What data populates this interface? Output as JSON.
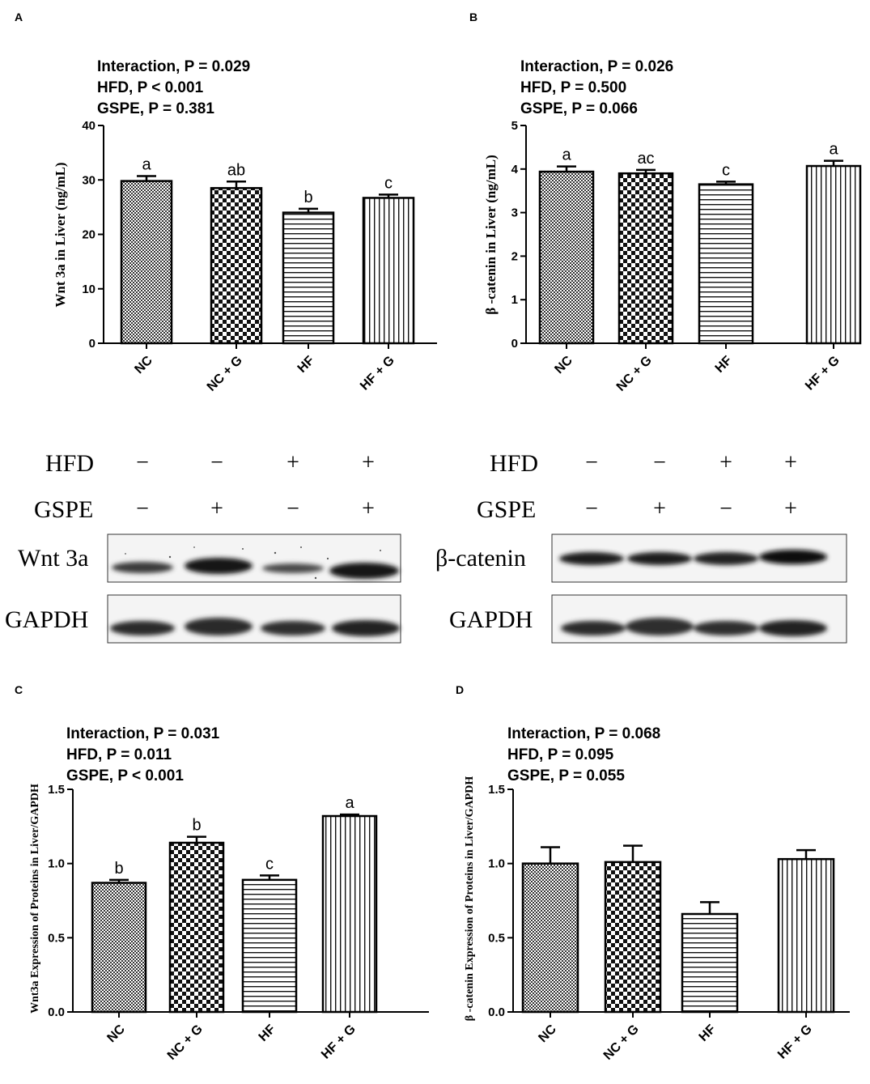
{
  "panels": [
    {
      "letter": "A",
      "stats": [
        "Interaction, P = 0.029",
        "HFD, P < 0.001",
        "GSPE, P = 0.381"
      ],
      "ylabel": "Wnt 3a in Liver (ng/mL)"
    },
    {
      "letter": "B",
      "stats": [
        "Interaction, P = 0.026",
        "HFD, P = 0.500",
        "GSPE, P = 0.066"
      ],
      "ylabel": "β -catenin in Liver (ng/mL)"
    },
    {
      "letter": "C",
      "stats": [
        "Interaction, P = 0.031",
        "HFD, P = 0.011",
        "GSPE, P < 0.001"
      ],
      "ylabel": "Wnt3a Expression of Proteins in Liver/GAPDH"
    },
    {
      "letter": "D",
      "stats": [
        "Interaction, P = 0.068",
        "HFD, P = 0.095",
        "GSPE, P = 0.055"
      ],
      "ylabel": "β -catenin Expression of Proteins in Liver/GAPDH"
    }
  ],
  "blots": {
    "left": {
      "row_labels": [
        "HFD",
        "GSPE"
      ],
      "hfd_signs": [
        "−",
        "−",
        "+",
        "+"
      ],
      "gspe_signs": [
        "−",
        "+",
        "−",
        "+"
      ],
      "band_labels": [
        "Wnt 3a",
        "GAPDH"
      ]
    },
    "right": {
      "row_labels": [
        "HFD",
        "GSPE"
      ],
      "hfd_signs": [
        "−",
        "−",
        "+",
        "+"
      ],
      "gspe_signs": [
        "−",
        "+",
        "−",
        "+"
      ],
      "band_labels": [
        "β-catenin",
        "GAPDH"
      ]
    }
  },
  "chart_data": [
    {
      "type": "bar",
      "categories": [
        "NC",
        "NC + G",
        "HF",
        "HF + G"
      ],
      "values": [
        29.8,
        28.5,
        24.0,
        26.7
      ],
      "errors": [
        0.9,
        1.2,
        0.7,
        0.6
      ],
      "letters": [
        "a",
        "ab",
        "b",
        "c"
      ],
      "ylabel": "Wnt 3a in Liver (ng/mL)",
      "ylim": [
        0,
        40
      ],
      "yticks": [
        0,
        10,
        20,
        30,
        40
      ]
    },
    {
      "type": "bar",
      "categories": [
        "NC",
        "NC + G",
        "HF",
        "HF + G"
      ],
      "values": [
        3.94,
        3.9,
        3.65,
        4.07
      ],
      "errors": [
        0.12,
        0.08,
        0.06,
        0.12
      ],
      "letters": [
        "a",
        "ac",
        "c",
        "a"
      ],
      "ylabel": "β -catenin in Liver (ng/mL)",
      "ylim": [
        0,
        5
      ],
      "yticks": [
        0,
        1,
        2,
        3,
        4,
        5
      ]
    },
    {
      "type": "bar",
      "categories": [
        "NC",
        "NC + G",
        "HF",
        "HF + G"
      ],
      "values": [
        0.87,
        1.14,
        0.89,
        1.32
      ],
      "errors": [
        0.02,
        0.04,
        0.03,
        0.01
      ],
      "letters": [
        "b",
        "b",
        "c",
        "a"
      ],
      "ylabel": "Wnt3a Expression of Proteins in Liver/GAPDH",
      "ylim": [
        0,
        1.5
      ],
      "yticks": [
        0.0,
        0.5,
        1.0,
        1.5
      ]
    },
    {
      "type": "bar",
      "categories": [
        "NC",
        "NC + G",
        "HF",
        "HF + G"
      ],
      "values": [
        1.0,
        1.01,
        0.66,
        1.03
      ],
      "errors": [
        0.11,
        0.11,
        0.08,
        0.06
      ],
      "letters": [
        "",
        "",
        "",
        ""
      ],
      "ylabel": "β -catenin Expression of Proteins in Liver/GAPDH",
      "ylim": [
        0,
        1.5
      ],
      "yticks": [
        0.0,
        0.5,
        1.0,
        1.5
      ]
    }
  ]
}
